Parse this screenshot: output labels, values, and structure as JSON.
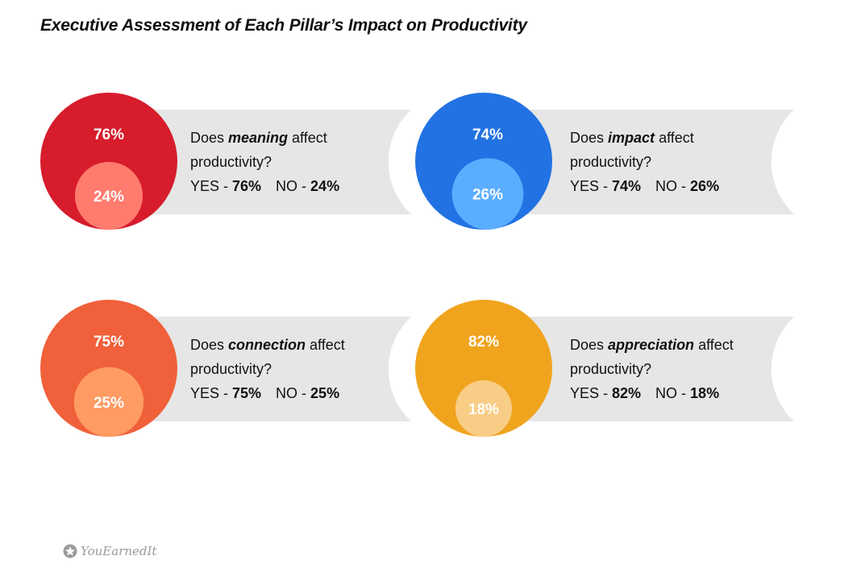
{
  "title": "Executive Assessment of Each Pillar’s Impact on Productivity",
  "chart_data": {
    "type": "bubble-comparison",
    "title": "Executive Assessment of Each Pillar’s Impact on Productivity",
    "items": [
      {
        "pillar": "meaning",
        "question_pre": "Does ",
        "keyword": "meaning",
        "question_post": " affect",
        "line2": "productivity?",
        "yes_label": "YES - ",
        "no_label": "NO - ",
        "yes": 76,
        "no": 24,
        "yes_text": "76%",
        "no_text": "24%",
        "color": "#D71C2C",
        "light": "#FF7B6E"
      },
      {
        "pillar": "impact",
        "question_pre": "Does ",
        "keyword": "impact",
        "question_post": " affect",
        "line2": "productivity?",
        "yes_label": "YES - ",
        "no_label": "NO - ",
        "yes": 74,
        "no": 26,
        "yes_text": "74%",
        "no_text": "26%",
        "color": "#2272E3",
        "light": "#5BAEFF"
      },
      {
        "pillar": "connection",
        "question_pre": "Does ",
        "keyword": "connection",
        "question_post": " affect",
        "line2": "productivity?",
        "yes_label": "YES - ",
        "no_label": "NO - ",
        "yes": 75,
        "no": 25,
        "yes_text": "75%",
        "no_text": "25%",
        "color": "#F0603A",
        "light": "#FF9B63"
      },
      {
        "pillar": "appreciation",
        "question_pre": "Does ",
        "keyword": "appreciation",
        "question_post": " affect",
        "line2": "productivity?",
        "yes_label": "YES - ",
        "no_label": "NO - ",
        "yes": 82,
        "no": 18,
        "yes_text": "82%",
        "no_text": "18%",
        "color": "#F0A41E",
        "light": "#F8CD85"
      }
    ]
  },
  "logo": {
    "text": "YouEarnedIt",
    "icon": "star-badge-icon"
  }
}
